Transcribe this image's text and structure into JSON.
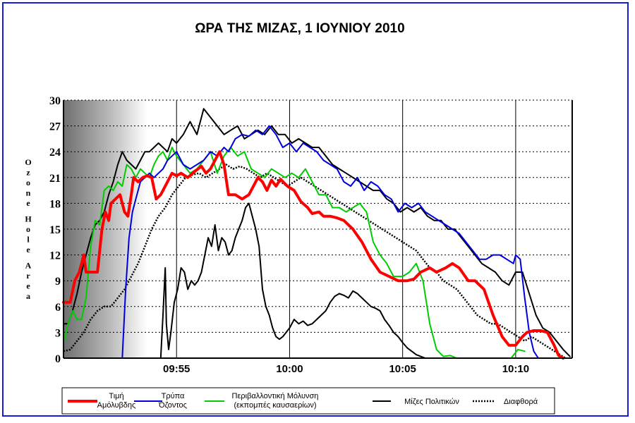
{
  "chart_data": {
    "type": "line",
    "title": "ΩΡΑ ΤΗΣ ΜΙΖΑΣ, 1 ΙΟΥΝΙΟΥ 2010",
    "xlabel": "",
    "ylabel": "Ozone Hole Area",
    "ylim": [
      0,
      30
    ],
    "xlim": [
      0,
      22.5
    ],
    "yticks": [
      0,
      3,
      6,
      9,
      12,
      15,
      18,
      21,
      24,
      27,
      30
    ],
    "xticks": [
      {
        "value": 5,
        "label": "09:55"
      },
      {
        "value": 10,
        "label": "10:00"
      },
      {
        "value": 15,
        "label": "10:05"
      },
      {
        "value": 20,
        "label": "10:10"
      }
    ],
    "grid": true,
    "legend_position": "bottom",
    "series": [
      {
        "name": "Τιμή Αμόλυβδης",
        "legend_lines": [
          "Τιμή",
          "Αμόλυβδης"
        ],
        "color": "#ff0000",
        "style": "thick",
        "x": [
          0,
          0.3,
          0.5,
          0.7,
          0.9,
          1.0,
          1.2,
          1.5,
          1.7,
          1.85,
          2.0,
          2.1,
          2.3,
          2.5,
          2.7,
          2.85,
          3.0,
          3.1,
          3.3,
          3.5,
          3.7,
          3.9,
          4.1,
          4.3,
          4.6,
          4.8,
          5.0,
          5.2,
          5.5,
          5.8,
          6.1,
          6.3,
          6.5,
          6.7,
          6.9,
          7.1,
          7.3,
          7.6,
          7.9,
          8.2,
          8.4,
          8.6,
          8.8,
          9.0,
          9.2,
          9.4,
          9.6,
          9.9,
          10.2,
          10.5,
          10.8,
          11.0,
          11.3,
          11.5,
          11.8,
          12.1,
          12.4,
          12.8,
          13.2,
          13.6,
          14.0,
          14.4,
          14.8,
          15.2,
          15.5,
          15.8,
          16.2,
          16.5,
          16.9,
          17.2,
          17.5,
          17.9,
          18.2,
          18.6,
          19.0,
          19.4,
          19.7,
          20.0,
          20.3,
          20.5,
          20.8,
          21.1,
          21.4,
          21.7,
          21.9,
          22.1
        ],
        "y": [
          6.5,
          6.5,
          9.0,
          10.0,
          12.0,
          10.0,
          10.0,
          10.0,
          15.0,
          17.0,
          16.0,
          18.0,
          18.5,
          19.0,
          17.0,
          16.5,
          19.0,
          21.0,
          20.5,
          21.0,
          21.2,
          21.0,
          18.5,
          19.0,
          20.5,
          21.5,
          21.2,
          21.5,
          21.0,
          21.7,
          22.3,
          21.5,
          22.0,
          23.0,
          24.0,
          22.5,
          19.0,
          19.0,
          18.5,
          19.0,
          20.0,
          21.0,
          20.5,
          19.5,
          20.7,
          20.0,
          20.8,
          20.0,
          19.5,
          18.2,
          17.5,
          16.8,
          17.0,
          16.5,
          16.5,
          16.3,
          16.0,
          15.0,
          13.5,
          11.5,
          10.0,
          9.5,
          9.0,
          9.0,
          9.2,
          10.0,
          10.5,
          10.0,
          10.5,
          11.0,
          10.5,
          9.0,
          9.0,
          8.0,
          5.0,
          2.5,
          1.5,
          1.5,
          2.5,
          3.0,
          3.2,
          3.2,
          3.0,
          1.5,
          0.3,
          0
        ]
      },
      {
        "name": "Τρύπα Όζοντος",
        "legend_lines": [
          "Τρύπα",
          "Όζοντος"
        ],
        "color": "#0000dd",
        "style": "normal",
        "x": [
          2.6,
          2.75,
          2.9,
          3.05,
          3.2,
          3.4,
          3.6,
          3.8,
          4.0,
          4.2,
          4.4,
          4.6,
          4.8,
          5.0,
          5.3,
          5.6,
          5.9,
          6.2,
          6.5,
          6.8,
          7.1,
          7.3,
          7.6,
          7.9,
          8.2,
          8.5,
          8.8,
          9.1,
          9.4,
          9.7,
          10.0,
          10.3,
          10.6,
          10.9,
          11.2,
          11.5,
          11.8,
          12.1,
          12.4,
          12.7,
          13.0,
          13.3,
          13.6,
          13.9,
          14.2,
          14.5,
          14.8,
          15.1,
          15.4,
          15.7,
          16.0,
          16.3,
          16.6,
          16.9,
          17.2,
          17.5,
          17.8,
          18.1,
          18.4,
          18.7,
          19.0,
          19.3,
          19.6,
          19.9,
          20.0,
          20.2,
          20.4,
          20.6,
          20.8,
          21.0
        ],
        "y": [
          0,
          8.0,
          14.0,
          17.0,
          18.5,
          20.5,
          21.0,
          21.5,
          21.0,
          21.5,
          22.0,
          23.0,
          23.5,
          24.0,
          22.5,
          22.0,
          22.5,
          23.0,
          24.0,
          23.5,
          24.5,
          24.0,
          25.5,
          26.0,
          25.8,
          26.5,
          26.0,
          27.0,
          26.0,
          24.5,
          25.0,
          24.0,
          25.0,
          24.5,
          24.0,
          23.0,
          22.5,
          22.0,
          20.5,
          20.0,
          21.0,
          19.5,
          20.5,
          20.0,
          19.0,
          18.5,
          17.0,
          18.0,
          17.5,
          18.0,
          17.0,
          16.5,
          16.0,
          15.5,
          15.0,
          14.5,
          13.5,
          12.5,
          11.5,
          11.5,
          12.0,
          12.0,
          11.5,
          11.0,
          12.0,
          11.5,
          7.0,
          3.0,
          0.8,
          0
        ]
      },
      {
        "name": "Περιβαλλοντική Μόλυνση (εκπομπές καυσαερίων)",
        "legend_lines": [
          "Περιβαλλοντική Μόλυνση",
          "(εκπομπές καυσαερίων)"
        ],
        "color": "#00cc00",
        "style": "normal",
        "x": [
          0,
          0.2,
          0.4,
          0.6,
          0.8,
          1.0,
          1.2,
          1.4,
          1.6,
          1.8,
          2.0,
          2.2,
          2.4,
          2.6,
          2.8,
          3.0,
          3.2,
          3.4,
          3.6,
          3.8,
          4.0,
          4.2,
          4.4,
          4.6,
          4.8,
          5.0,
          5.3,
          5.6,
          5.9,
          6.2,
          6.5,
          6.8,
          7.1,
          7.4,
          7.7,
          8.0,
          8.3,
          8.6,
          8.9,
          9.2,
          9.5,
          9.8,
          10.1,
          10.4,
          10.7,
          11.0,
          11.3,
          11.6,
          11.9,
          12.2,
          12.5,
          12.8,
          13.1,
          13.4,
          13.7,
          14.0,
          14.3,
          14.6,
          15.0,
          15.3,
          15.6,
          15.9,
          16.2,
          16.5,
          16.8,
          17.1,
          17.4,
          17.7,
          18.0,
          18.3,
          18.6,
          18.9,
          19.2,
          19.5,
          19.8,
          20.1,
          20.4
        ],
        "y": [
          1.5,
          4.0,
          5.5,
          4.5,
          4.5,
          7.0,
          13.0,
          16.0,
          15.5,
          19.5,
          20.0,
          19.5,
          20.5,
          20.0,
          22.5,
          22.0,
          21.0,
          22.0,
          21.5,
          21.0,
          22.5,
          23.5,
          24.0,
          23.0,
          24.5,
          23.5,
          22.5,
          21.5,
          22.0,
          23.0,
          24.0,
          21.5,
          23.5,
          24.5,
          23.5,
          24.0,
          22.0,
          21.5,
          21.0,
          22.0,
          21.5,
          21.0,
          21.5,
          21.0,
          22.0,
          20.5,
          19.0,
          19.0,
          17.5,
          17.5,
          17.0,
          17.5,
          18.0,
          17.0,
          13.5,
          12.0,
          11.0,
          9.5,
          9.5,
          10.0,
          11.0,
          9.0,
          4.0,
          1.0,
          0.2,
          0.3,
          0,
          0,
          0,
          0,
          0,
          0,
          0,
          0,
          0,
          1.0,
          0.8
        ]
      },
      {
        "name": "Μίζες Πολιτικών",
        "legend_lines": [
          "Μίζες Πολιτικών"
        ],
        "color": "#000000",
        "style": "normal",
        "x": [
          0,
          0.2,
          0.4,
          0.6,
          0.8,
          1.0,
          1.2,
          1.4,
          1.6,
          1.8,
          2.0,
          2.2,
          2.4,
          2.6,
          2.8,
          3.0,
          3.2,
          3.4,
          3.6,
          3.8,
          4.0,
          4.2,
          4.4,
          4.6,
          4.8,
          5.0,
          5.3,
          5.6,
          5.9,
          6.2,
          6.5,
          6.8,
          7.1,
          7.4,
          7.7,
          8.0,
          8.3,
          8.6,
          8.9,
          9.2,
          9.5,
          9.8,
          10.1,
          10.4,
          10.7,
          11.0,
          11.3,
          11.6,
          11.9,
          12.2,
          12.5,
          12.8,
          13.1,
          13.4,
          13.7,
          14.0,
          14.3,
          14.6,
          14.9,
          15.2,
          15.5,
          15.8,
          16.1,
          16.4,
          16.7,
          17.0,
          17.3,
          17.6,
          17.9,
          18.2,
          18.5,
          18.8,
          19.1,
          19.4,
          19.7,
          20.0,
          20.3,
          20.6,
          20.9,
          21.2,
          21.5,
          21.8,
          22.1,
          22.4
        ],
        "y": [
          4.0,
          4.0,
          5.5,
          7.5,
          10.0,
          12.0,
          14.0,
          15.5,
          16.0,
          17.0,
          19.0,
          20.5,
          22.5,
          24.0,
          23.0,
          22.5,
          22.0,
          23.0,
          24.0,
          24.0,
          24.5,
          25.0,
          24.5,
          24.0,
          25.5,
          25.0,
          26.0,
          27.5,
          26.0,
          29.0,
          28.0,
          27.0,
          26.0,
          26.5,
          27.0,
          25.5,
          26.0,
          26.5,
          26.0,
          27.0,
          26.0,
          26.0,
          25.0,
          25.5,
          25.0,
          24.5,
          24.5,
          23.5,
          22.5,
          22.0,
          21.5,
          21.0,
          20.5,
          20.0,
          19.5,
          19.5,
          18.5,
          18.0,
          17.0,
          17.5,
          17.0,
          17.5,
          16.5,
          16.0,
          16.0,
          15.0,
          15.0,
          14.0,
          13.0,
          12.0,
          11.0,
          10.5,
          10.0,
          9.0,
          8.5,
          10.0,
          10.0,
          7.5,
          5.0,
          3.5,
          3.0,
          2.0,
          1.0,
          0.2
        ]
      },
      {
        "name": "Διαφθορά",
        "legend_lines": [
          "Διαφθορά"
        ],
        "color": "#000000",
        "style": "dotted",
        "x": [
          0,
          0.3,
          0.6,
          0.9,
          1.2,
          1.5,
          1.8,
          2.1,
          2.4,
          2.7,
          3.0,
          3.3,
          3.6,
          3.9,
          4.2,
          4.5,
          4.8,
          5.1,
          5.4,
          5.7,
          6.0,
          6.3,
          6.6,
          6.9,
          7.2,
          7.5,
          7.8,
          8.1,
          8.4,
          8.7,
          9.0,
          9.3,
          9.6,
          9.9,
          10.2,
          10.5,
          10.8,
          11.1,
          11.4,
          11.7,
          12.0,
          12.3,
          12.6,
          12.9,
          13.2,
          13.5,
          13.8,
          14.1,
          14.4,
          14.7,
          15.0,
          15.3,
          15.6,
          15.9,
          16.2,
          16.5,
          16.8,
          17.1,
          17.4,
          17.7,
          18.0,
          18.3,
          18.6,
          18.9,
          19.2,
          19.5,
          19.8,
          20.1,
          20.4,
          20.7,
          21.0,
          21.3,
          21.6,
          21.9,
          22.2
        ],
        "y": [
          0.8,
          1.0,
          2.0,
          3.0,
          4.5,
          5.5,
          6.0,
          6.0,
          7.0,
          8.0,
          9.5,
          11.0,
          13.0,
          15.0,
          16.5,
          17.5,
          19.0,
          20.0,
          21.0,
          21.3,
          21.5,
          21.0,
          21.5,
          22.0,
          22.5,
          22.0,
          22.3,
          22.0,
          21.5,
          21.0,
          21.5,
          21.0,
          20.5,
          20.0,
          20.5,
          21.0,
          20.5,
          20.0,
          19.5,
          19.0,
          18.5,
          18.0,
          17.5,
          17.0,
          16.5,
          16.0,
          15.5,
          15.0,
          14.5,
          14.0,
          13.5,
          13.0,
          12.5,
          11.5,
          10.5,
          10.0,
          9.0,
          8.5,
          8.0,
          7.0,
          6.0,
          5.0,
          4.5,
          4.0,
          4.0,
          3.5,
          3.0,
          2.5,
          2.0,
          2.5,
          2.0,
          1.5,
          1.0,
          0.5,
          0
        ]
      },
      {
        "name": "Μίζες Πολιτικών (β)",
        "legend_lines": [],
        "color": "#000000",
        "style": "normal",
        "x": [
          4.3,
          4.4,
          4.5,
          4.55,
          4.65,
          4.75,
          4.9,
          5.05,
          5.2,
          5.35,
          5.5,
          5.65,
          5.8,
          5.95,
          6.1,
          6.25,
          6.4,
          6.55,
          6.7,
          6.85,
          7.0,
          7.15,
          7.3,
          7.45,
          7.6,
          7.75,
          7.9,
          8.05,
          8.2,
          8.35,
          8.5,
          8.65,
          8.8,
          8.95,
          9.1,
          9.25,
          9.4,
          9.55,
          9.7,
          9.85,
          10.0,
          10.2,
          10.4,
          10.6,
          10.8,
          11.0,
          11.2,
          11.4,
          11.6,
          11.8,
          12.0,
          12.2,
          12.4,
          12.6,
          12.8,
          13.0,
          13.2,
          13.4,
          13.6,
          13.8,
          14.0,
          14.2,
          14.4,
          14.6,
          14.8,
          15.0,
          15.2,
          15.4,
          15.6,
          15.8,
          16.0
        ],
        "y": [
          0,
          5.0,
          10.5,
          4.0,
          1.0,
          3.0,
          6.5,
          8.0,
          10.5,
          10.0,
          8.0,
          9.0,
          8.5,
          9.0,
          10.0,
          12.0,
          14.0,
          13.0,
          15.5,
          12.5,
          14.0,
          13.5,
          12.0,
          12.5,
          14.0,
          15.0,
          16.0,
          17.5,
          18.0,
          16.5,
          15.0,
          13.0,
          8.0,
          6.0,
          5.0,
          3.5,
          2.5,
          2.2,
          2.5,
          3.0,
          3.5,
          4.5,
          4.0,
          4.3,
          3.8,
          4.0,
          4.5,
          5.0,
          5.5,
          6.5,
          7.2,
          7.5,
          7.3,
          7.0,
          7.8,
          7.5,
          7.0,
          6.5,
          6.0,
          5.8,
          5.5,
          4.5,
          3.8,
          3.0,
          2.5,
          1.8,
          1.2,
          0.8,
          0.4,
          0.2,
          0
        ]
      }
    ]
  }
}
